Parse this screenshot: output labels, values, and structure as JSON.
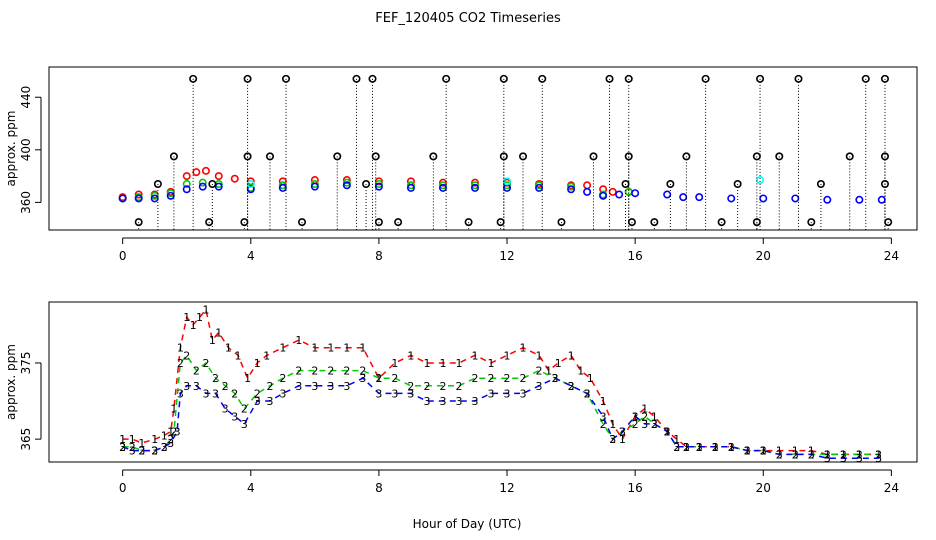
{
  "title": "FEF_120405  CO2 Timeseries",
  "xlabel": "Hour of Day (UTC)",
  "colors": {
    "series1": "#ff0000",
    "series2": "#00cc00",
    "series3": "#0000ff",
    "black": "#000000",
    "cyan": "#00ffff"
  },
  "chart_data": [
    {
      "type": "scatter",
      "panel": "top",
      "title": "FEF_120405  CO2 Timeseries",
      "ylabel": "approx. ppm",
      "xlim": [
        -2.3,
        24.8
      ],
      "ylim": [
        339,
        463
      ],
      "xticks": [
        0,
        4,
        8,
        12,
        16,
        20,
        24
      ],
      "yticks": [
        360,
        400,
        440
      ],
      "ytick_labels": [
        "360",
        "400",
        "440"
      ],
      "grid": false,
      "series": [
        {
          "color": "#ff0000",
          "marker": "circle",
          "x": [
            0.0,
            0.5,
            1.0,
            1.5,
            2.0,
            2.3,
            2.6,
            3.0,
            3.5,
            4.0,
            5.0,
            6.0,
            7.0,
            8.0,
            9.0,
            10.0,
            11.0,
            12.0,
            13.0,
            14.0,
            14.5,
            15.0,
            15.3,
            15.8
          ],
          "y": [
            364,
            366,
            366,
            368,
            380,
            383,
            384,
            380,
            378,
            376,
            376,
            377,
            377,
            376,
            376,
            375,
            375,
            375,
            374,
            373,
            373,
            370,
            368,
            368
          ]
        },
        {
          "color": "#00cc00",
          "marker": "circle",
          "x": [
            0.0,
            0.5,
            1.0,
            1.5,
            2.0,
            2.5,
            3.0,
            4.0,
            5.0,
            6.0,
            7.0,
            8.0,
            9.0,
            10.0,
            11.0,
            12.0,
            13.0,
            14.0,
            15.0,
            15.8
          ],
          "y": [
            363,
            364,
            365,
            367,
            374,
            375,
            374,
            371,
            373,
            374,
            375,
            374,
            373,
            373,
            373,
            373,
            373,
            372,
            366,
            368
          ]
        },
        {
          "color": "#0000ff",
          "marker": "circle",
          "x": [
            0.0,
            0.5,
            1.0,
            1.5,
            2.0,
            2.5,
            3.0,
            4.0,
            5.0,
            6.0,
            7.0,
            8.0,
            9.0,
            10.0,
            11.0,
            12.0,
            13.0,
            14.0,
            14.5,
            15.0,
            15.5,
            16.0,
            17.0,
            17.5,
            18.0,
            19.0,
            20.0,
            21.0,
            22.0,
            23.0,
            23.7
          ],
          "y": [
            363,
            363,
            363,
            365,
            370,
            372,
            372,
            370,
            371,
            372,
            373,
            372,
            371,
            371,
            371,
            371,
            371,
            370,
            368,
            365,
            366,
            367,
            366,
            364,
            364,
            363,
            363,
            363,
            362,
            362,
            362
          ]
        },
        {
          "color": "#00ffff",
          "marker": "circle",
          "x": [
            4.0,
            12.0,
            19.9
          ],
          "y": [
            374,
            376,
            377
          ]
        },
        {
          "color": "#000000",
          "marker": "circle",
          "drop_lines": true,
          "x": [
            2.2,
            3.9,
            5.1,
            7.3,
            7.8,
            10.1,
            11.9,
            13.1,
            15.2,
            15.8,
            18.2,
            19.9,
            21.1,
            23.2,
            23.8
          ],
          "y": [
            454,
            454,
            454,
            454,
            454,
            454,
            454,
            454,
            454,
            454,
            454,
            454,
            454,
            454,
            454
          ]
        },
        {
          "color": "#000000",
          "marker": "circle",
          "drop_lines": true,
          "x": [
            1.6,
            3.9,
            4.6,
            6.7,
            7.9,
            9.7,
            11.9,
            12.5,
            14.7,
            15.8,
            17.6,
            19.8,
            20.5,
            22.7,
            23.8
          ],
          "y": [
            395,
            395,
            395,
            395,
            395,
            395,
            395,
            395,
            395,
            395,
            395,
            395,
            395,
            395,
            395
          ]
        },
        {
          "color": "#000000",
          "marker": "circle",
          "drop_lines": true,
          "x": [
            1.1,
            2.8,
            7.6,
            15.7,
            17.1,
            19.2,
            21.8,
            23.8
          ],
          "y": [
            374,
            374,
            374,
            374,
            374,
            374,
            374,
            374
          ]
        },
        {
          "color": "#000000",
          "marker": "circle",
          "drop_lines": true,
          "x": [
            0.5,
            2.7,
            3.8,
            5.6,
            8.0,
            8.6,
            10.8,
            11.8,
            13.7,
            15.9,
            16.6,
            18.7,
            19.8,
            21.5,
            23.9
          ],
          "y": [
            345,
            345,
            345,
            345,
            345,
            345,
            345,
            345,
            345,
            345,
            345,
            345,
            345,
            345,
            345
          ]
        }
      ]
    },
    {
      "type": "line",
      "panel": "bottom",
      "ylabel": "approx. ppm",
      "xlim": [
        -2.3,
        24.8
      ],
      "ylim": [
        362,
        383
      ],
      "xticks": [
        0,
        4,
        8,
        12,
        16,
        20,
        24
      ],
      "yticks": [
        365,
        375
      ],
      "ytick_labels": [
        "365",
        "375"
      ],
      "grid": false,
      "series": [
        {
          "name": "1",
          "color": "#ff0000",
          "marker": "1",
          "x": [
            0.0,
            0.3,
            0.6,
            1.0,
            1.3,
            1.5,
            1.6,
            1.8,
            2.0,
            2.2,
            2.4,
            2.6,
            2.8,
            3.0,
            3.3,
            3.6,
            3.9,
            4.2,
            4.5,
            5.0,
            5.5,
            6.0,
            6.5,
            7.0,
            7.5,
            8.0,
            8.5,
            9.0,
            9.5,
            10.0,
            10.5,
            11.0,
            11.5,
            12.0,
            12.5,
            13.0,
            13.3,
            13.6,
            14.0,
            14.3,
            14.6,
            15.0,
            15.3,
            15.6,
            16.0,
            16.3,
            16.6,
            17.0,
            17.3,
            17.6,
            18.0,
            18.5,
            19.0,
            19.5,
            20.0,
            20.5,
            21.0,
            21.5,
            22.0,
            22.5,
            23.0,
            23.6
          ],
          "y": [
            365,
            365,
            364.5,
            365,
            365.5,
            366,
            369,
            377,
            381,
            380,
            381,
            382,
            378,
            379,
            377,
            376,
            373,
            375,
            376,
            377,
            378,
            377,
            377,
            377,
            377,
            373,
            375,
            376,
            375,
            375,
            375,
            376,
            375,
            376,
            377,
            376,
            374,
            375,
            376,
            374,
            373,
            370,
            367,
            365,
            368,
            369,
            368,
            366,
            365,
            364,
            364,
            364,
            364,
            363.5,
            363.5,
            363.5,
            363.5,
            363.5,
            363,
            363,
            363,
            363
          ]
        },
        {
          "name": "2",
          "color": "#00cc00",
          "marker": "2",
          "x": [
            0.0,
            0.3,
            0.6,
            1.0,
            1.3,
            1.5,
            1.6,
            1.8,
            2.0,
            2.3,
            2.6,
            2.9,
            3.2,
            3.5,
            3.8,
            4.2,
            4.6,
            5.0,
            5.5,
            6.0,
            6.5,
            7.0,
            7.5,
            8.0,
            8.5,
            9.0,
            9.5,
            10.0,
            10.5,
            11.0,
            11.5,
            12.0,
            12.5,
            13.0,
            13.5,
            14.0,
            14.5,
            15.0,
            15.3,
            15.6,
            16.0,
            16.3,
            16.6,
            17.0,
            17.3,
            17.6,
            18.0,
            18.5,
            19.0,
            19.5,
            20.0,
            20.5,
            21.0,
            21.5,
            22.0,
            22.5,
            23.0,
            23.6
          ],
          "y": [
            364,
            364,
            363.5,
            363.5,
            364,
            365,
            366,
            375,
            376,
            374,
            375,
            373,
            372,
            371,
            369,
            371,
            372,
            373,
            374,
            374,
            374,
            374,
            374,
            373,
            373,
            372,
            372,
            372,
            372,
            373,
            373,
            373,
            373,
            374,
            373,
            372,
            371,
            367,
            365,
            366,
            367,
            368,
            367,
            366,
            364,
            364,
            364,
            364,
            364,
            363.5,
            363.5,
            363,
            363,
            363,
            363,
            363,
            363,
            363
          ]
        },
        {
          "name": "3",
          "color": "#0000ff",
          "marker": "3",
          "x": [
            0.0,
            0.3,
            0.6,
            1.0,
            1.3,
            1.5,
            1.7,
            1.8,
            2.0,
            2.3,
            2.6,
            2.9,
            3.2,
            3.5,
            3.8,
            4.2,
            4.6,
            5.0,
            5.5,
            6.0,
            6.5,
            7.0,
            7.5,
            8.0,
            8.5,
            9.0,
            9.5,
            10.0,
            10.5,
            11.0,
            11.5,
            12.0,
            12.5,
            13.0,
            13.5,
            14.0,
            14.5,
            15.0,
            15.3,
            15.6,
            16.0,
            16.3,
            16.6,
            17.0,
            17.3,
            17.6,
            18.0,
            18.5,
            19.0,
            19.5,
            20.0,
            20.5,
            21.0,
            21.5,
            22.0,
            22.5,
            23.0,
            23.6
          ],
          "y": [
            364,
            363.5,
            363.5,
            363.5,
            364,
            364.5,
            366,
            371,
            372,
            372,
            371,
            371,
            369,
            368,
            367,
            370,
            370,
            371,
            372,
            372,
            372,
            372,
            373,
            371,
            371,
            371,
            370,
            370,
            370,
            370,
            371,
            371,
            371,
            372,
            373,
            372,
            371,
            368,
            365,
            366,
            368,
            367,
            367,
            366,
            364,
            364,
            364,
            364,
            364,
            363.5,
            363.5,
            363,
            363,
            363,
            362.5,
            362.5,
            362.5,
            362.5
          ]
        }
      ]
    }
  ]
}
